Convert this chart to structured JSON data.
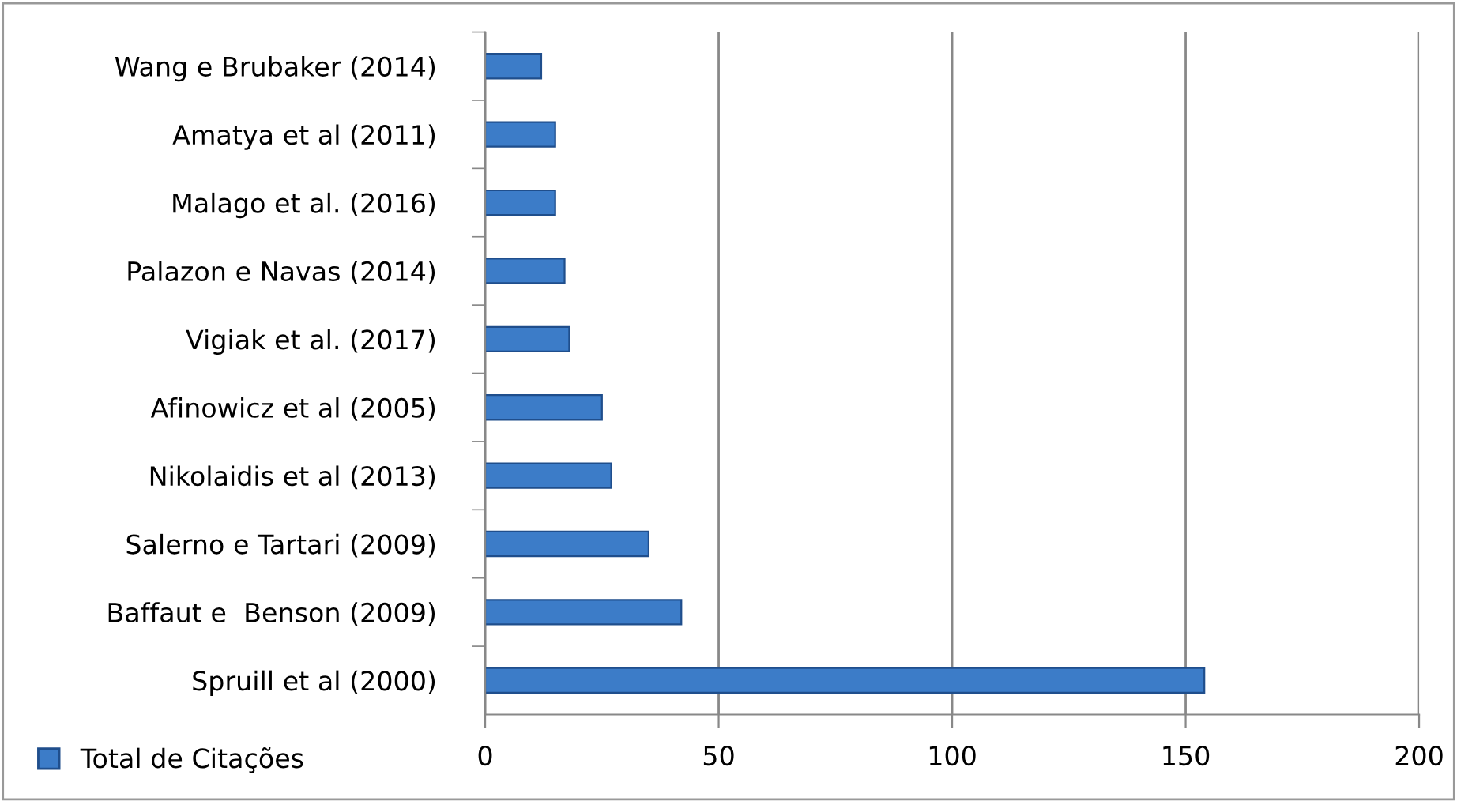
{
  "chart_data": {
    "type": "bar",
    "orientation": "horizontal",
    "categories": [
      "Wang e Brubaker (2014)",
      "Amatya et al (2011)",
      "Malago et al. (2016)",
      "Palazon e Navas (2014)",
      "Vigiak et al. (2017)",
      "Afinowicz et al (2005)",
      "Nikolaidis et al (2013)",
      "Salerno e Tartari (2009)",
      "Baffaut e  Benson (2009)",
      "Spruill et al (2000)"
    ],
    "series": [
      {
        "name": "Total de Citações",
        "color": "#3c7cc8",
        "values": [
          12,
          15,
          15,
          17,
          18,
          25,
          27,
          35,
          42,
          154
        ]
      }
    ],
    "xlim": [
      0,
      200
    ],
    "xticks": [
      0,
      50,
      100,
      150,
      200
    ],
    "grid": "x",
    "legend": "bottom left"
  }
}
